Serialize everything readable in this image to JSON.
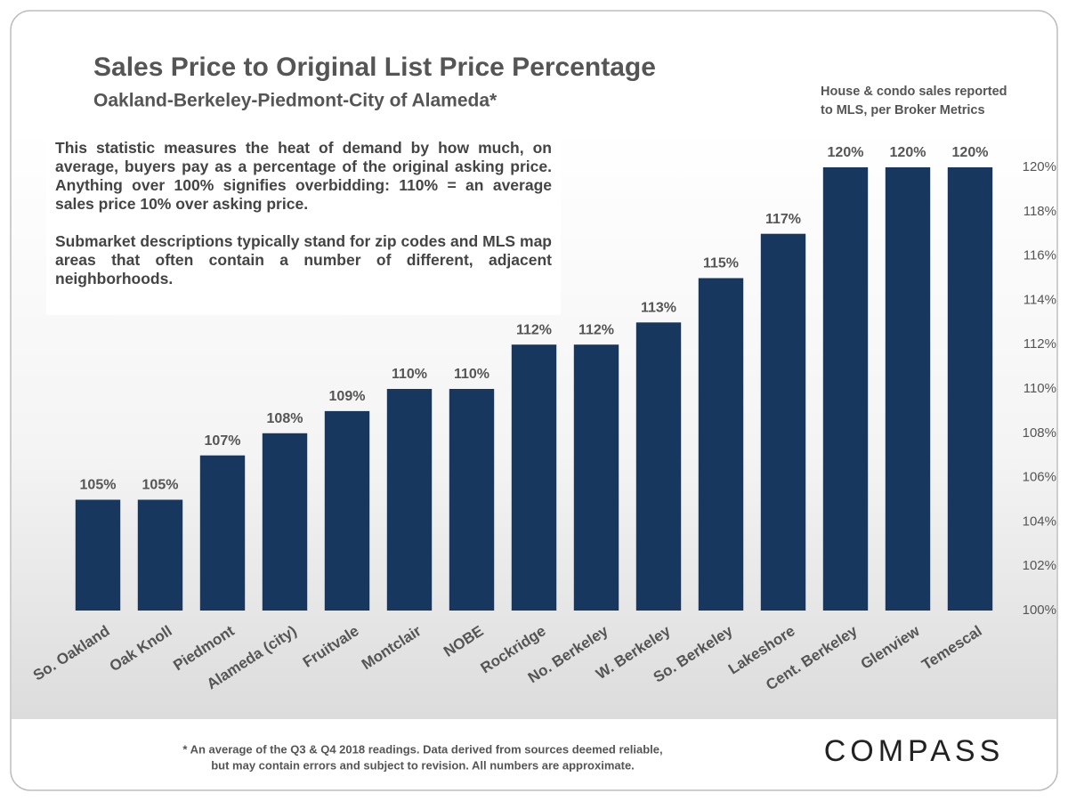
{
  "title": "Sales Price to Original List Price Percentage",
  "subtitle": "Oakland-Berkeley-Piedmont-City  of Alameda*",
  "source_note": [
    "House & condo sales reported",
    "to MLS, per Broker Metrics"
  ],
  "description": [
    "This statistic measures the heat of demand by how much, on average, buyers pay as a percentage of the original asking price. Anything over 100% signifies overbidding: 110% = an average sales price 10% over asking price.",
    "Submarket descriptions typically stand for zip codes and MLS map areas that often contain a number of different, adjacent neighborhoods."
  ],
  "footnote": [
    "* An average of the Q3 & Q4 2018 readings. Data derived from sources deemed reliable,",
    "but may contain errors and subject to revision.  All numbers are approximate."
  ],
  "logo": "COMPASS",
  "chart_data": {
    "type": "bar",
    "categories": [
      "So. Oakland",
      "Oak Knoll",
      "Piedmont",
      "Alameda (city)",
      "Fruitvale",
      "Montclair",
      "NOBE",
      "Rockridge",
      "No. Berkeley",
      "W. Berkeley",
      "So. Berkeley",
      "Lakeshore",
      "Cent. Berkeley",
      "Glenview",
      "Temescal"
    ],
    "values": [
      105,
      105,
      107,
      108,
      109,
      110,
      110,
      112,
      112,
      113,
      115,
      117,
      120,
      120,
      120
    ],
    "value_labels": [
      "105%",
      "105%",
      "107%",
      "108%",
      "109%",
      "110%",
      "110%",
      "112%",
      "112%",
      "113%",
      "115%",
      "117%",
      "120%",
      "120%",
      "120%"
    ],
    "color": "#17375e",
    "ylim": [
      100,
      120
    ],
    "yticks": [
      {
        "value": 100,
        "label": "100%"
      },
      {
        "value": 102,
        "label": "102%"
      },
      {
        "value": 104,
        "label": "104%"
      },
      {
        "value": 106,
        "label": "106%"
      },
      {
        "value": 108,
        "label": "108%"
      },
      {
        "value": 110,
        "label": "110%"
      },
      {
        "value": 112,
        "label": "112%"
      },
      {
        "value": 114,
        "label": "114%"
      },
      {
        "value": 116,
        "label": "116%"
      },
      {
        "value": 118,
        "label": "118%"
      },
      {
        "value": 120,
        "label": "120%"
      }
    ],
    "axis_side": "right"
  }
}
